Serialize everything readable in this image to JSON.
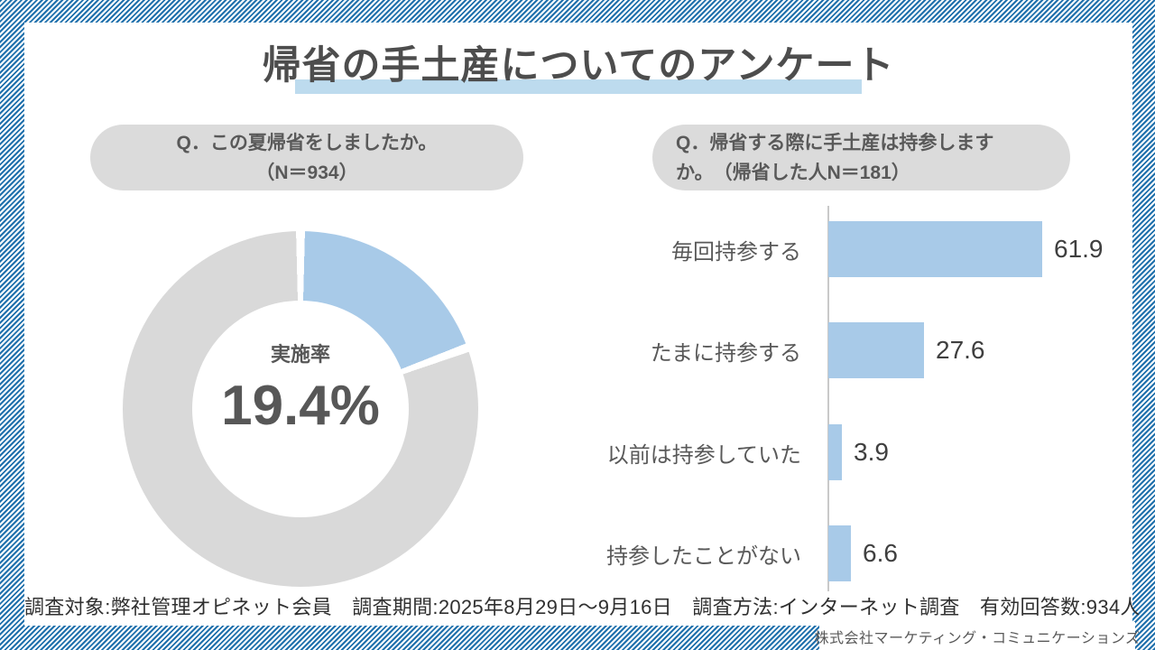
{
  "page": {
    "title": "帰省の手土産についてのアンケート",
    "footer_source": "調査対象:弊社管理オピネット会員　調査期間:2025年8月29日～9月16日　調査方法:インターネット調査　有効回答数:934人",
    "company": "株式会社マーケティング・コミュニケーションズ"
  },
  "left_section": {
    "question_line1": "Q．この夏帰省をしましたか。",
    "question_line2": "（N＝934）",
    "donut_center_label": "実施率",
    "donut_center_value": "19.4%"
  },
  "right_section": {
    "question_line1": "Q．帰省する際に手土産は持参します",
    "question_line2": "か。　（帰省した人N＝181）"
  },
  "colors": {
    "stripe_blue": "#1F70AC",
    "accent_blue": "#A8CAE8",
    "title_underline_blue": "#BDDBEE",
    "pill_gray": "#DBDBDB",
    "donut_gray": "#D9D9D9",
    "text_dark": "#4D4D4D",
    "text_gray": "#595959"
  },
  "chart_data": [
    {
      "type": "pie",
      "subtype": "donut",
      "question": "Q．この夏帰省をしましたか。（N＝934）",
      "center_label": "実施率",
      "center_value": "19.4%",
      "values": [
        19.4,
        80.6
      ],
      "colors": [
        "#A8CAE8",
        "#D9D9D9"
      ],
      "start_angle_deg": 0,
      "direction": "clockwise",
      "legend": "none"
    },
    {
      "type": "bar",
      "orientation": "horizontal",
      "question": "Q．帰省する際に手土産は持参しますか。（帰省した人N＝181）",
      "categories": [
        "毎回持参する",
        "たまに持参する",
        "以前は持参していた",
        "持参したことがない"
      ],
      "values": [
        61.9,
        27.6,
        3.9,
        6.6
      ],
      "value_labels": [
        "61.9",
        "27.6",
        "3.9",
        "6.6"
      ],
      "bar_color": "#A8CAE8",
      "xlim": [
        0,
        87
      ],
      "grid": "off",
      "legend": "none"
    }
  ]
}
